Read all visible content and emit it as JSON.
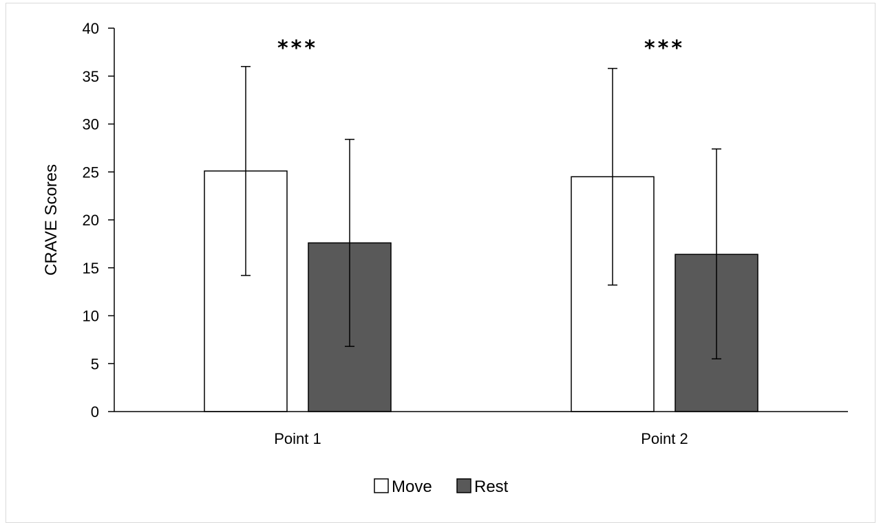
{
  "chart_data": {
    "type": "bar",
    "ylabel": "CRAVE Scores",
    "ylim": [
      0,
      40
    ],
    "yticks": [
      0,
      5,
      10,
      15,
      20,
      25,
      30,
      35,
      40
    ],
    "categories": [
      "Point 1",
      "Point 2"
    ],
    "series": [
      {
        "name": "Move",
        "values": [
          25.1,
          24.5
        ],
        "error_low": [
          14.2,
          13.2
        ],
        "error_high": [
          36.0,
          35.8
        ],
        "color": "#ffffff"
      },
      {
        "name": "Rest",
        "values": [
          17.6,
          16.4
        ],
        "error_low": [
          6.8,
          5.5
        ],
        "error_high": [
          28.4,
          27.4
        ],
        "color": "#595959"
      }
    ],
    "annotations": [
      "***",
      "***"
    ],
    "legend_position": "bottom",
    "grid": false
  }
}
